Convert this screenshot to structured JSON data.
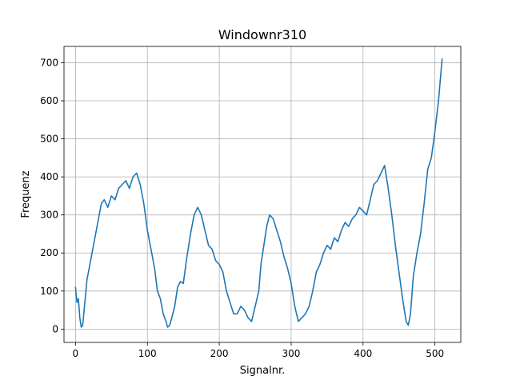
{
  "chart_data": {
    "type": "line",
    "title": "Windownr310",
    "xlabel": "Signalnr.",
    "ylabel": "Frequenz",
    "xlim": [
      -16,
      536
    ],
    "ylim": [
      -35,
      743
    ],
    "xticks": [
      0,
      100,
      200,
      300,
      400,
      500
    ],
    "yticks": [
      0,
      100,
      200,
      300,
      400,
      500,
      600,
      700
    ],
    "grid": true,
    "series": [
      {
        "color": "#1f77b4",
        "x": [
          0,
          2,
          4,
          6,
          8,
          10,
          13,
          16,
          20,
          24,
          28,
          32,
          36,
          40,
          45,
          50,
          55,
          60,
          65,
          70,
          75,
          80,
          85,
          90,
          95,
          100,
          103,
          106,
          110,
          114,
          118,
          122,
          126,
          128,
          131,
          134,
          138,
          142,
          146,
          150,
          155,
          160,
          165,
          170,
          175,
          180,
          185,
          190,
          195,
          200,
          205,
          210,
          215,
          220,
          225,
          230,
          235,
          240,
          245,
          250,
          255,
          258,
          262,
          266,
          270,
          275,
          280,
          285,
          290,
          295,
          300,
          305,
          310,
          315,
          320,
          325,
          330,
          335,
          340,
          345,
          350,
          355,
          360,
          365,
          370,
          375,
          380,
          385,
          390,
          395,
          400,
          405,
          410,
          415,
          420,
          425,
          430,
          435,
          440,
          445,
          450,
          455,
          460,
          463,
          466,
          470,
          475,
          480,
          485,
          490,
          495,
          500,
          505,
          510
        ],
        "values": [
          110,
          70,
          80,
          30,
          5,
          10,
          70,
          130,
          170,
          210,
          250,
          290,
          330,
          340,
          320,
          350,
          340,
          370,
          380,
          390,
          370,
          400,
          410,
          380,
          330,
          260,
          230,
          200,
          160,
          100,
          80,
          40,
          20,
          5,
          10,
          30,
          60,
          110,
          125,
          120,
          190,
          250,
          300,
          320,
          300,
          260,
          220,
          210,
          180,
          170,
          150,
          100,
          70,
          40,
          40,
          60,
          50,
          30,
          20,
          60,
          100,
          170,
          220,
          270,
          300,
          290,
          260,
          230,
          190,
          160,
          120,
          60,
          20,
          30,
          40,
          60,
          100,
          150,
          170,
          200,
          220,
          210,
          240,
          230,
          260,
          280,
          270,
          290,
          300,
          320,
          310,
          300,
          340,
          380,
          390,
          410,
          430,
          370,
          300,
          220,
          150,
          80,
          20,
          10,
          40,
          140,
          200,
          250,
          330,
          420,
          450,
          520,
          600,
          710
        ]
      }
    ]
  }
}
